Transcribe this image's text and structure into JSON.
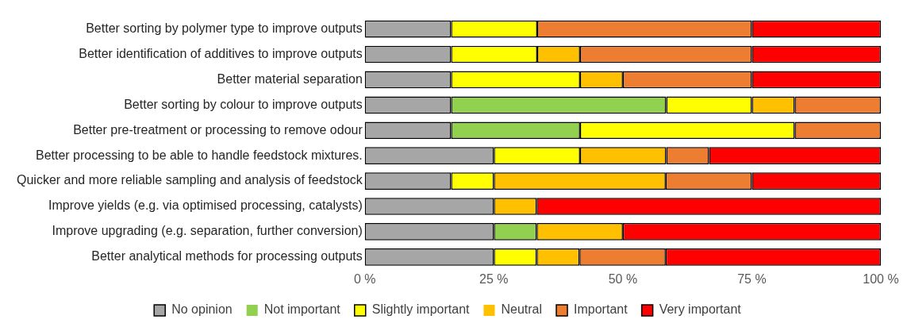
{
  "chart_data": {
    "type": "bar",
    "orientation": "horizontal",
    "stacked": true,
    "categories": [
      "Better sorting by polymer type to improve outputs",
      "Better identification of additives to improve outputs",
      "Better material separation",
      "Better sorting by colour to improve outputs",
      "Better pre-treatment or processing to remove odour",
      "Better processing to be able to handle feedstock mixtures.",
      "Quicker and more reliable sampling and analysis of feedstock",
      "Improve yields (e.g. via optimised processing, catalysts)",
      "Improve upgrading (e.g. separation, further conversion)",
      "Better analytical methods for processing outputs"
    ],
    "series": [
      {
        "name": "No opinion",
        "color": "#a6a6a6",
        "values": [
          16.7,
          16.7,
          16.7,
          16.7,
          16.7,
          25,
          16.7,
          25,
          25,
          25
        ]
      },
      {
        "name": "Not important",
        "color": "#92d050",
        "values": [
          0,
          0,
          0,
          41.7,
          25,
          0,
          0,
          0,
          8.3,
          0
        ]
      },
      {
        "name": "Slightly important",
        "color": "#ffff00",
        "values": [
          16.7,
          16.7,
          25,
          16.6,
          41.6,
          16.7,
          8.3,
          0,
          0,
          8.3
        ]
      },
      {
        "name": "Neutral",
        "color": "#ffc000",
        "values": [
          0,
          8.3,
          8.3,
          8.3,
          0,
          16.7,
          33.3,
          8.3,
          16.7,
          8.3
        ]
      },
      {
        "name": "Important",
        "color": "#ed7d31",
        "values": [
          41.6,
          33.3,
          25,
          16.7,
          16.7,
          8.3,
          16.7,
          0,
          0,
          16.7
        ]
      },
      {
        "name": "Very important",
        "color": "#ff0000",
        "values": [
          25,
          25,
          25,
          0,
          0,
          33.3,
          25,
          66.7,
          50,
          41.7
        ]
      }
    ],
    "xlim": [
      0,
      100
    ],
    "xticks": [
      {
        "value": 0,
        "label": "0 %"
      },
      {
        "value": 25,
        "label": "25 %"
      },
      {
        "value": 50,
        "label": "50 %"
      },
      {
        "value": 75,
        "label": "75 %"
      },
      {
        "value": 100,
        "label": "100 %"
      }
    ],
    "grid": false,
    "legend": "bottom"
  }
}
